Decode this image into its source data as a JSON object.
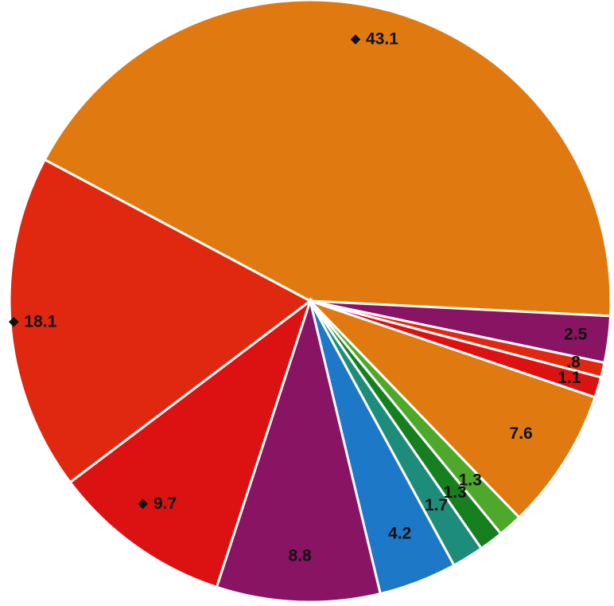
{
  "chart_data": {
    "type": "pie",
    "start_at": "left-upper, proceeding clockwise",
    "slices": [
      {
        "label": "43.1",
        "value": 43.1,
        "color": "#e07a10",
        "marker": true
      },
      {
        "label": "2.5",
        "value": 2.5,
        "color": "#8a1464",
        "marker": false
      },
      {
        "label": ".8",
        "value": 0.8,
        "color": "#e02810",
        "marker": false
      },
      {
        "label": "1.1",
        "value": 1.1,
        "color": "#dc1212",
        "marker": false
      },
      {
        "label": "7.6",
        "value": 7.6,
        "color": "#e07a10",
        "marker": false
      },
      {
        "label": "1.3",
        "value": 1.3,
        "color": "#4ea82a",
        "marker": false
      },
      {
        "label": "1.3",
        "value": 1.3,
        "color": "#17801e",
        "marker": false
      },
      {
        "label": "1.7",
        "value": 1.7,
        "color": "#1e8c7a",
        "marker": false
      },
      {
        "label": "4.2",
        "value": 4.2,
        "color": "#1e78c8",
        "marker": false
      },
      {
        "label": "8.8",
        "value": 8.8,
        "color": "#8a1464",
        "marker": false
      },
      {
        "label": "9.7",
        "value": 9.7,
        "color": "#dc1212",
        "marker": true
      },
      {
        "label": "18.1",
        "value": 18.1,
        "color": "#e02810",
        "marker": true
      }
    ]
  }
}
